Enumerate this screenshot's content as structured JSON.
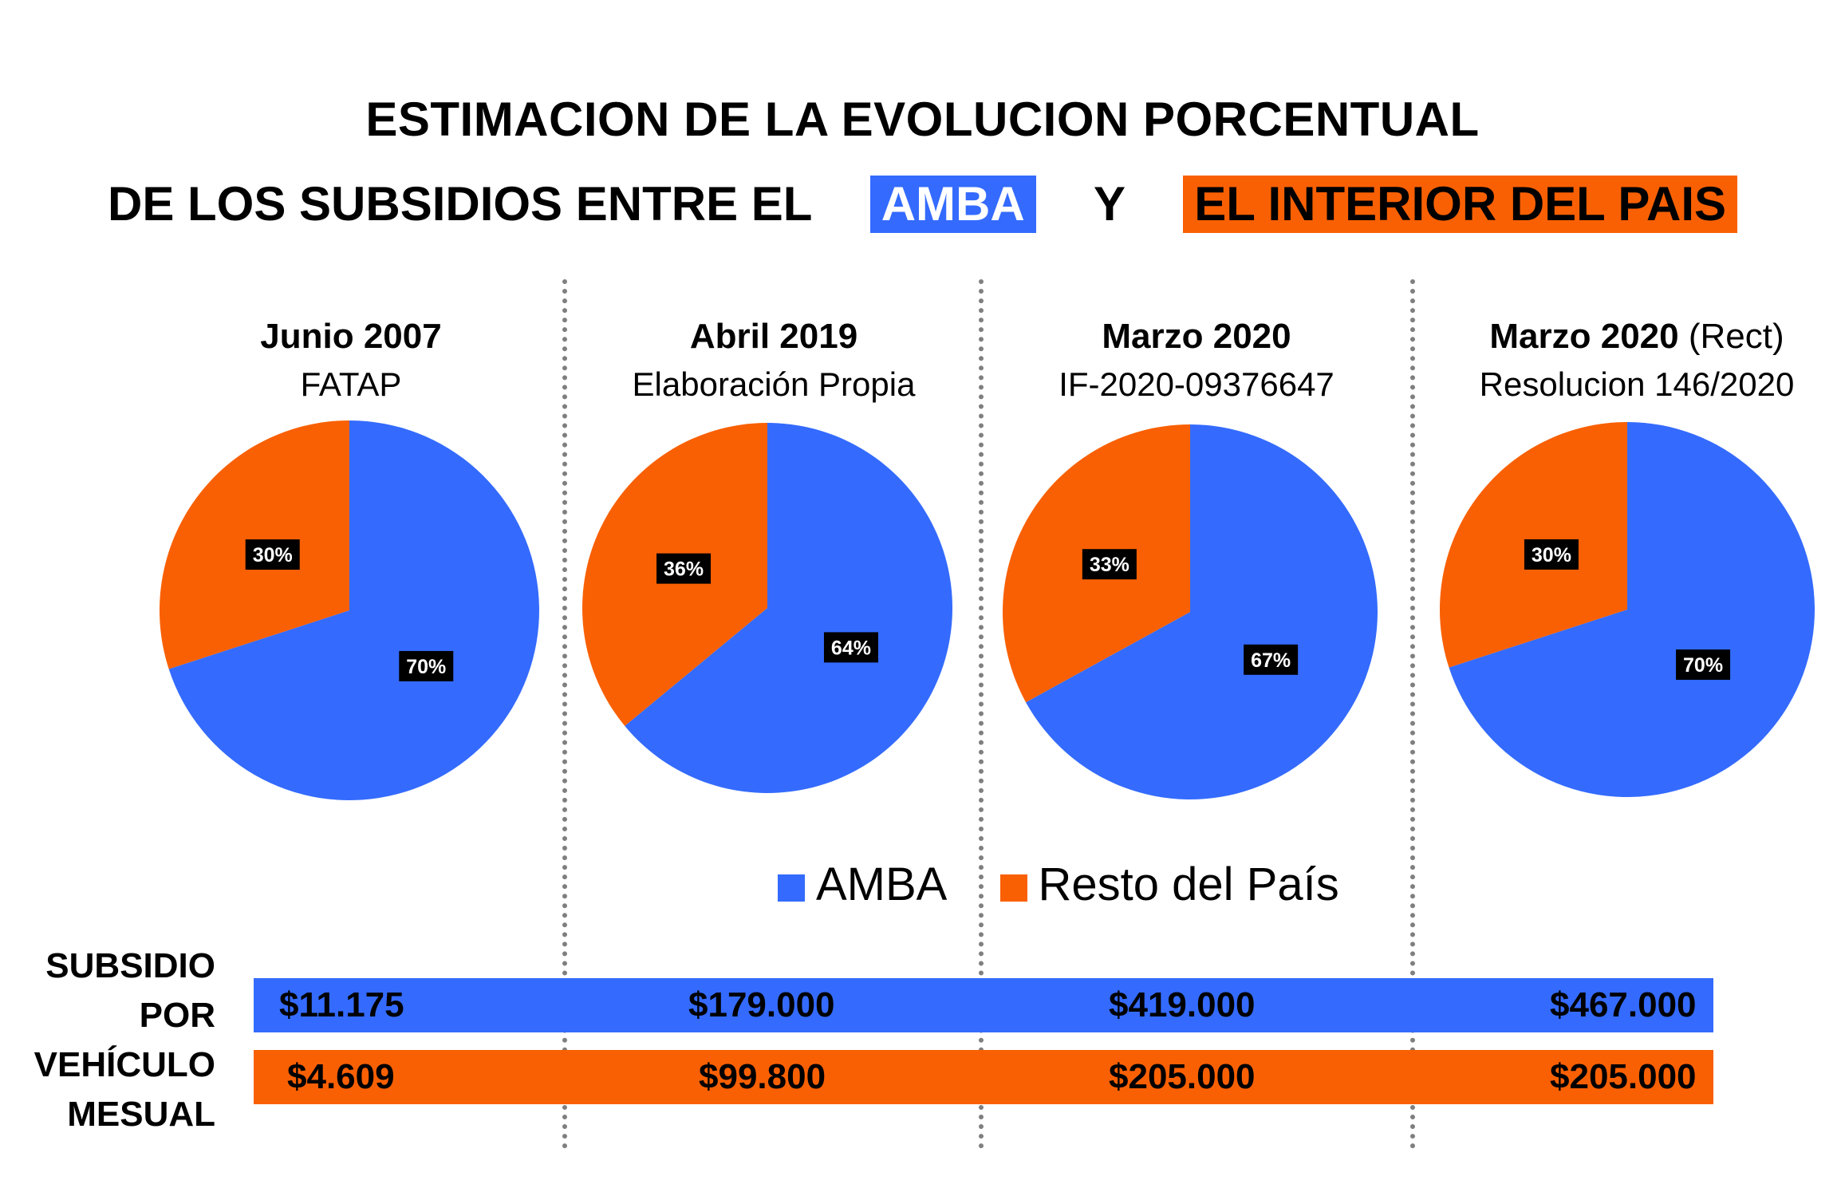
{
  "title": {
    "line1": "ESTIMACION DE LA EVOLUCION PORCENTUAL",
    "line2_prefix": "DE LOS SUBSIDIOS ENTRE EL",
    "amba_tag": "AMBA",
    "connector": "Y",
    "interior_tag": "EL INTERIOR DEL PAIS"
  },
  "colors": {
    "amba": "#346bfe",
    "resto": "#f96003",
    "label_bg": "#000000",
    "label_text": "#ffffff",
    "tag_text": "#ffffff",
    "separator": "#7f7f7f"
  },
  "chart_data": [
    {
      "type": "pie",
      "title": "Junio 2007",
      "subtitle": "FATAP",
      "categories": [
        "AMBA",
        "Resto del País"
      ],
      "values": [
        70,
        30
      ],
      "labels": [
        "70%",
        "30%"
      ]
    },
    {
      "type": "pie",
      "title": "Abril 2019",
      "subtitle": "Elaboración Propia",
      "categories": [
        "AMBA",
        "Resto del País"
      ],
      "values": [
        64,
        36
      ],
      "labels": [
        "64%",
        "36%"
      ]
    },
    {
      "type": "pie",
      "title": "Marzo 2020",
      "subtitle": "IF-2020-09376647",
      "categories": [
        "AMBA",
        "Resto del País"
      ],
      "values": [
        67,
        33
      ],
      "labels": [
        "67%",
        "33%"
      ]
    },
    {
      "type": "pie",
      "title": "Marzo 2020",
      "title_note": "(Rect)",
      "subtitle": "Resolucion 146/2020",
      "categories": [
        "AMBA",
        "Resto del País"
      ],
      "values": [
        70,
        30
      ],
      "labels": [
        "70%",
        "30%"
      ]
    }
  ],
  "legend": {
    "amba": "AMBA",
    "resto": "Resto del País",
    "placement": "bottom-center"
  },
  "subsidy": {
    "row_label": [
      "SUBSIDIO",
      "POR",
      "VEHÍCULO",
      "MESUAL"
    ],
    "amba_values": [
      "$11.175",
      "$179.000",
      "$419.000",
      "$467.000"
    ],
    "resto_values": [
      "$4.609",
      "$99.800",
      "$205.000",
      "$205.000"
    ]
  }
}
